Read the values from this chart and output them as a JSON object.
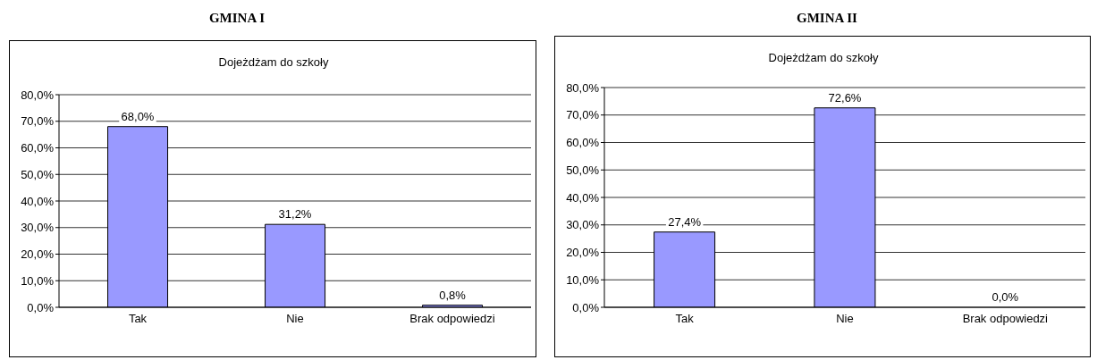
{
  "chart_data": [
    {
      "type": "bar",
      "title": "GMINA I",
      "subtitle": "Dojeżdżam do szkoły",
      "categories": [
        "Tak",
        "Nie",
        "Brak odpowiedzi"
      ],
      "values": [
        68.0,
        31.2,
        0.8
      ],
      "value_labels": [
        "68,0%",
        "31,2%",
        "0,8%"
      ],
      "color": "#9999ff",
      "ylim": [
        0,
        80
      ],
      "yticks": [
        {
          "value": 0,
          "label": "0,0%"
        },
        {
          "value": 10,
          "label": "10,0%"
        },
        {
          "value": 20,
          "label": "20,0%"
        },
        {
          "value": 30,
          "label": "30,0%"
        },
        {
          "value": 40,
          "label": "40,0%"
        },
        {
          "value": 50,
          "label": "50,0%"
        },
        {
          "value": 60,
          "label": "60,0%"
        },
        {
          "value": 70,
          "label": "70,0%"
        },
        {
          "value": 80,
          "label": "80,0%"
        }
      ],
      "grid": "y",
      "legend": false
    },
    {
      "type": "bar",
      "title": "GMINA II",
      "subtitle": "Dojeżdżam do szkoły",
      "categories": [
        "Tak",
        "Nie",
        "Brak odpowiedzi"
      ],
      "values": [
        27.4,
        72.6,
        0.0
      ],
      "value_labels": [
        "27,4%",
        "72,6%",
        "0,0%"
      ],
      "color": "#9999ff",
      "ylim": [
        0,
        80
      ],
      "yticks": [
        {
          "value": 0,
          "label": "0,0%"
        },
        {
          "value": 10,
          "label": "10,0%"
        },
        {
          "value": 20,
          "label": "20,0%"
        },
        {
          "value": 30,
          "label": "30,0%"
        },
        {
          "value": 40,
          "label": "40,0%"
        },
        {
          "value": 50,
          "label": "50,0%"
        },
        {
          "value": 60,
          "label": "60,0%"
        },
        {
          "value": 70,
          "label": "70,0%"
        },
        {
          "value": 80,
          "label": "80,0%"
        }
      ],
      "grid": "y",
      "legend": false
    }
  ]
}
